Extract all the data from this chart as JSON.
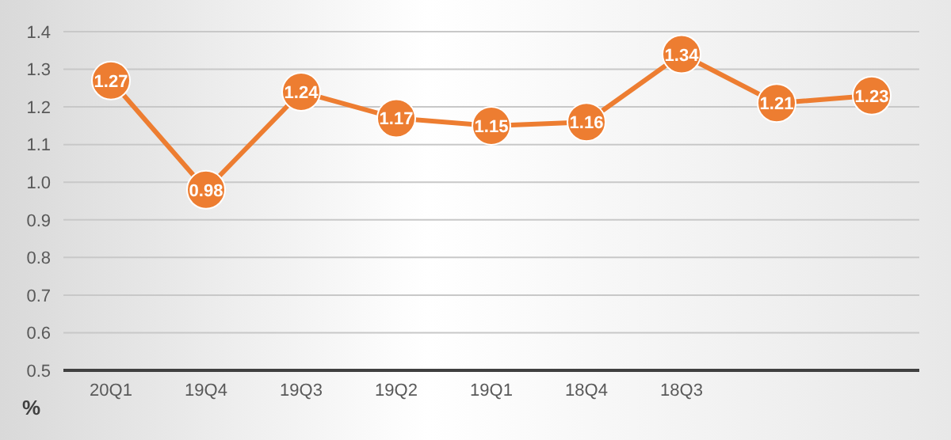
{
  "chart_data": {
    "type": "line",
    "ylabel": "%",
    "categories": [
      "20Q1",
      "19Q4",
      "19Q3",
      "19Q2",
      "19Q1",
      "18Q4",
      "18Q3",
      null,
      null
    ],
    "series": [
      {
        "color": "#ed7d31",
        "values": [
          1.27,
          0.98,
          1.24,
          1.17,
          1.15,
          1.16,
          1.34,
          1.21,
          1.23
        ]
      }
    ],
    "ylim": [
      0.5,
      1.4
    ],
    "yticks": [
      0.5,
      0.6,
      0.7,
      0.8,
      0.9,
      {
        "value": 1,
        "label": "1.0"
      },
      1.1,
      1.2,
      1.3,
      1.4
    ],
    "grid": "y",
    "legend": false,
    "marker": "circle",
    "line_style": "solid",
    "data_labels": true
  }
}
